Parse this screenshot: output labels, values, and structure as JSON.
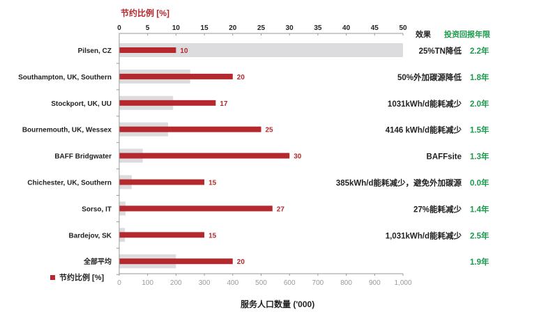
{
  "chart_data": {
    "type": "bar",
    "top_axis": {
      "label": "节约比例 [%]",
      "range": [
        0,
        50
      ],
      "ticks": [
        "0",
        "5",
        "10",
        "15",
        "20",
        "25",
        "30",
        "35",
        "40",
        "45",
        "50"
      ]
    },
    "bottom_axis": {
      "label": "服务人口数量 ('000)",
      "range": [
        0,
        1000
      ],
      "ticks": [
        "0",
        "100",
        "200",
        "300",
        "400",
        "500",
        "600",
        "700",
        "800",
        "900",
        "1,000"
      ]
    },
    "categories": [
      "Pilsen, CZ",
      "Southampton, UK, Southern",
      "Stockport, UK, UU",
      "Bournemouth, UK, Wessex",
      "BAFF Bridgwater",
      "Chichester, UK, Southern",
      "Sorso, IT",
      "Bardejov, SK",
      "全部平均"
    ],
    "series": [
      {
        "name": "节约比例 [%]",
        "axis": "top",
        "color": "#b5282e",
        "values": [
          10,
          20,
          17,
          25,
          30,
          15,
          27,
          15,
          20
        ]
      },
      {
        "axis": "bottom",
        "color": "#dcdcde",
        "values": [
          1000,
          250,
          190,
          172,
          83,
          44,
          22,
          20,
          200
        ]
      }
    ],
    "effect_header": "效果",
    "payback_header": "投资回报年限",
    "effects": [
      "25%TN降低",
      "50%外加碳源降低",
      "1031kWh/d能耗减少",
      "4146 kWh/d能耗减少",
      "BAFFsite",
      "385kWh/d能耗减少，避免外加碳源",
      "27%能耗减少",
      "1,031kWh/d能耗减少",
      ""
    ],
    "payback": [
      "2.2年",
      "1.8年",
      "2.0年",
      "1.5年",
      "1.3年",
      "0.0年",
      "1.4年",
      "2.5年",
      "1.9年"
    ],
    "legend": {
      "label": "节约比例 [%]",
      "position": "bottom-left"
    },
    "colors": {
      "accent": "#b5282e",
      "payback": "#1a9a4a",
      "grey_bar": "#dcdcde",
      "axis": "#999999"
    }
  }
}
